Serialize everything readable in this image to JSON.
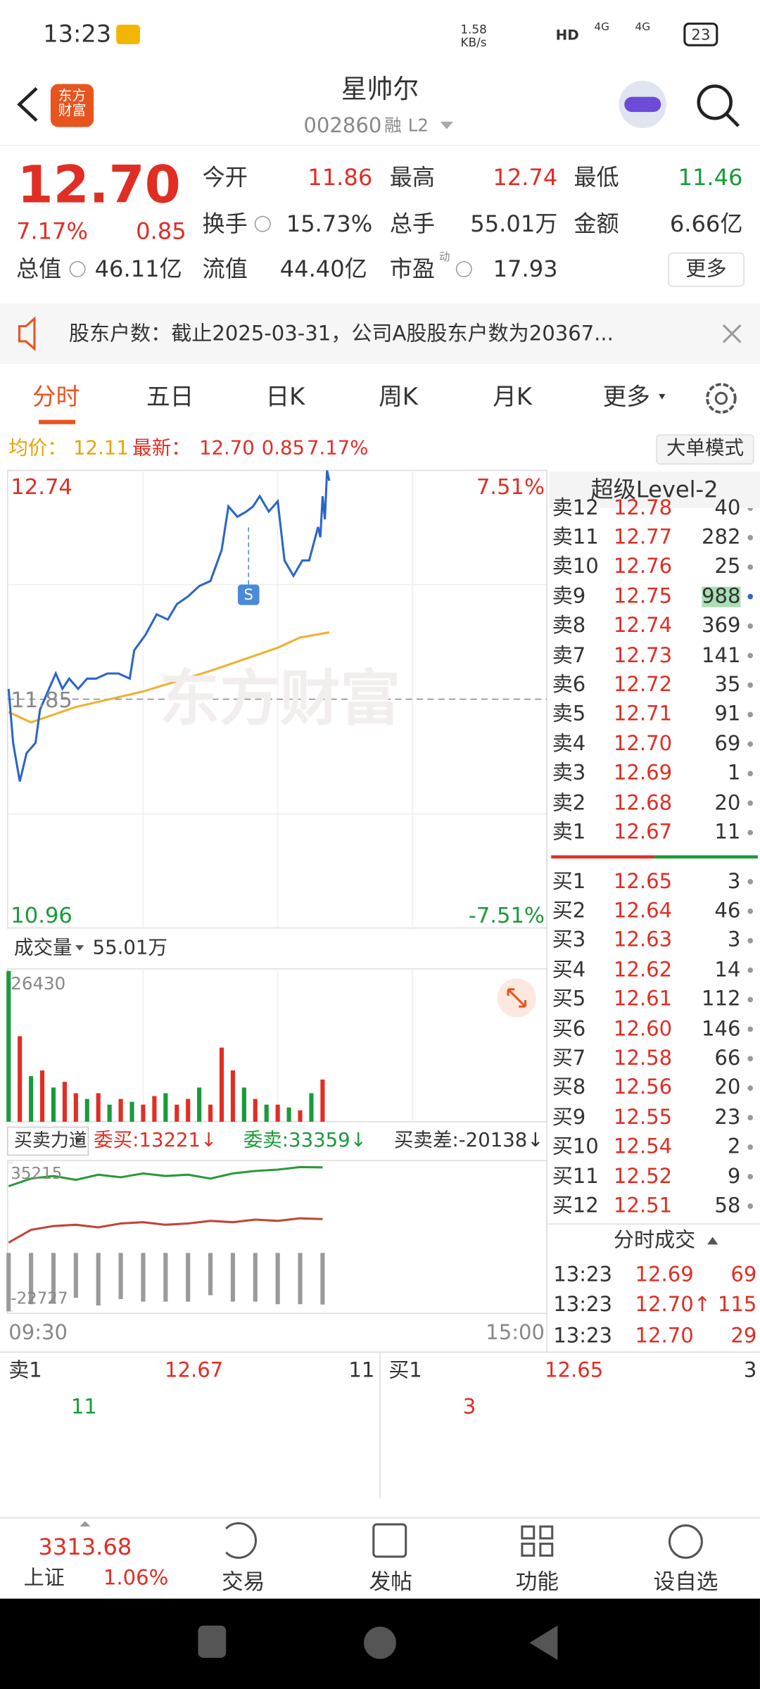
{
  "status_bar": {
    "time": "13:23",
    "speed": "1.58",
    "speed_unit": "KB/s",
    "hd": "HD",
    "net1": "4G",
    "net2": "4G",
    "battery": "23"
  },
  "header": {
    "title": "星帅尔",
    "code": "002860",
    "tag": "融",
    "level": "L2",
    "logo": "东方财富"
  },
  "quote": {
    "price": "12.70",
    "change_pct": "7.17%",
    "change": "0.85",
    "more": "更多",
    "pe_note": "动",
    "rows": [
      [
        {
          "label": "今开",
          "value": "11.86"
        },
        {
          "label": "最高",
          "value": "12.74"
        },
        {
          "label": "最低",
          "value": "11.46"
        }
      ],
      [
        {
          "label": "换手",
          "value": "15.73%"
        },
        {
          "label": "总手",
          "value": "55.01万"
        },
        {
          "label": "金额",
          "value": "6.66亿"
        }
      ],
      [
        {
          "label": "总值",
          "value": "46.11亿"
        },
        {
          "label": "流值",
          "value": "44.40亿"
        },
        {
          "label": "市盈",
          "value": "17.93"
        }
      ]
    ]
  },
  "notice": {
    "text": "股东户数：截止2025-03-31，公司A股股东户数为20367..."
  },
  "tabs": [
    "分时",
    "五日",
    "日K",
    "周K",
    "月K",
    "更多"
  ],
  "info": {
    "avg_label": "均价：",
    "avg": "12.11",
    "last_label": "最新：",
    "last": "12.70",
    "change": "0.85",
    "pct": "7.17%",
    "mode": "大单模式"
  },
  "chart_data": [
    {
      "type": "line",
      "x": [
        "09:30",
        "09:32",
        "09:35",
        "09:38",
        "09:42",
        "09:44",
        "09:48",
        "09:51",
        "09:54",
        "09:57",
        "10:01",
        "10:05",
        "10:09",
        "10:14",
        "10:19",
        "10:24",
        "10:26",
        "10:31",
        "10:36",
        "10:41",
        "10:45",
        "10:50",
        "10:55",
        "11:00",
        "11:05",
        "11:08",
        "11:12",
        "11:16",
        "11:19",
        "11:22",
        "11:26",
        "11:30",
        "13:03",
        "13:07",
        "13:11",
        "13:14",
        "13:18",
        "13:19",
        "13:20",
        "13:21",
        "13:22",
        "13:23"
      ],
      "series": [
        {
          "name": "最新",
          "color": "#2a66c8",
          "values": [
            11.89,
            11.68,
            11.53,
            11.64,
            11.68,
            11.81,
            11.89,
            11.95,
            11.89,
            11.93,
            11.89,
            11.93,
            11.93,
            11.95,
            11.95,
            11.93,
            12.04,
            12.1,
            12.18,
            12.16,
            12.22,
            12.25,
            12.29,
            12.31,
            12.43,
            12.6,
            12.56,
            12.58,
            12.6,
            12.64,
            12.58,
            12.62,
            12.39,
            12.33,
            12.39,
            12.39,
            12.52,
            12.48,
            12.64,
            12.55,
            12.74,
            12.7
          ]
        }
      ],
      "avg_x": [
        "09:30",
        "09:40",
        "10:00",
        "10:30",
        "11:00",
        "11:30",
        "13:10",
        "13:23"
      ],
      "avg_values": [
        11.8,
        11.76,
        11.82,
        11.88,
        11.96,
        12.05,
        12.09,
        12.11
      ],
      "avg_color": "#f0b030",
      "ylim": [
        10.96,
        12.74
      ],
      "yticks": [
        12.74,
        11.85,
        10.96
      ],
      "y2lim": [
        -7.51,
        7.51
      ],
      "y2ticks": [
        {
          "value": 7.51,
          "label": "7.51%"
        },
        {
          "value": -7.51,
          "label": "-7.51%"
        }
      ],
      "xticks": [
        "09:30",
        "15:00"
      ],
      "watermark": "东方财富",
      "annotation": {
        "x": "11:17",
        "text": "S"
      }
    },
    {
      "type": "bar",
      "label": "成交量",
      "total": "55.01万",
      "x": [
        "09:30",
        "09:35",
        "09:40",
        "09:45",
        "09:50",
        "09:55",
        "10:00",
        "10:05",
        "10:10",
        "10:15",
        "10:20",
        "10:25",
        "10:30",
        "10:35",
        "10:40",
        "10:45",
        "10:50",
        "10:55",
        "11:00",
        "11:05",
        "11:10",
        "11:15",
        "11:20",
        "11:25",
        "13:00",
        "13:05",
        "13:10",
        "13:15",
        "13:20"
      ],
      "values": [
        26430,
        15000,
        8000,
        9000,
        6000,
        7000,
        5000,
        4000,
        5000,
        3000,
        4000,
        3500,
        3000,
        4500,
        5000,
        3000,
        4000,
        6000,
        3000,
        13000,
        9000,
        6000,
        4000,
        3000,
        3000,
        2500,
        2000,
        5000,
        7400
      ],
      "colors": [
        "#1a9a3a",
        "#e02e24",
        "#1a9a3a",
        "#e02e24",
        "#1a9a3a",
        "#e02e24",
        "#e02e24",
        "#1a9a3a",
        "#e02e24",
        "#1a9a3a",
        "#e02e24",
        "#1a9a3a",
        "#e02e24",
        "#e02e24",
        "#1a9a3a",
        "#e02e24",
        "#e02e24",
        "#1a9a3a",
        "#e02e24",
        "#e02e24",
        "#e02e24",
        "#1a9a3a",
        "#e02e24",
        "#1a9a3a",
        "#e02e24",
        "#1a9a3a",
        "#e02e24",
        "#1a9a3a",
        "#e02e24"
      ],
      "ylim": [
        0,
        26430
      ],
      "yticks": [
        26430
      ]
    },
    {
      "type": "line",
      "label": "买卖力道",
      "buy": "委买:13221↓",
      "sell": "委卖:33359↓",
      "diff": "买卖差:-20138↓",
      "x": [
        "09:30",
        "09:40",
        "09:50",
        "10:00",
        "10:10",
        "10:20",
        "10:30",
        "10:40",
        "10:50",
        "11:00",
        "11:10",
        "11:20",
        "11:30",
        "13:10",
        "13:20"
      ],
      "series": [
        {
          "name": "委卖",
          "color": "#2a9a3a",
          "values": [
            26000,
            29000,
            30000,
            28500,
            30500,
            29500,
            31000,
            30000,
            30500,
            29000,
            31000,
            32000,
            32500,
            33500,
            33359
          ]
        },
        {
          "name": "委买",
          "color": "#c0453a",
          "values": [
            4000,
            9000,
            10500,
            11000,
            10000,
            11500,
            12000,
            11000,
            11500,
            12500,
            12000,
            13000,
            12500,
            13500,
            13221
          ]
        },
        {
          "name": "买卖差",
          "mark": "bar",
          "color": "#9a9a9a",
          "values": [
            -22727,
            -20000,
            -19500,
            -17500,
            -20500,
            -18000,
            -19000,
            -19000,
            -19000,
            -16500,
            -19000,
            -19000,
            -20000,
            -20000,
            -20138
          ]
        }
      ],
      "ylim": [
        -22727,
        35215
      ],
      "yticks": [
        35215,
        -22727
      ]
    }
  ],
  "order_book": {
    "title": "超级Level-2",
    "asks": [
      {
        "label": "卖12",
        "price": "12.78",
        "volume": "40"
      },
      {
        "label": "卖11",
        "price": "12.77",
        "volume": "282"
      },
      {
        "label": "卖10",
        "price": "12.76",
        "volume": "25"
      },
      {
        "label": "卖9",
        "price": "12.75",
        "volume": "988"
      },
      {
        "label": "卖8",
        "price": "12.74",
        "volume": "369"
      },
      {
        "label": "卖7",
        "price": "12.73",
        "volume": "141"
      },
      {
        "label": "卖6",
        "price": "12.72",
        "volume": "35"
      },
      {
        "label": "卖5",
        "price": "12.71",
        "volume": "91"
      },
      {
        "label": "卖4",
        "price": "12.70",
        "volume": "69"
      },
      {
        "label": "卖3",
        "price": "12.69",
        "volume": "1"
      },
      {
        "label": "卖2",
        "price": "12.68",
        "volume": "20"
      },
      {
        "label": "卖1",
        "price": "12.67",
        "volume": "11"
      }
    ],
    "bids": [
      {
        "label": "买1",
        "price": "12.65",
        "volume": "3"
      },
      {
        "label": "买2",
        "price": "12.64",
        "volume": "46"
      },
      {
        "label": "买3",
        "price": "12.63",
        "volume": "3"
      },
      {
        "label": "买4",
        "price": "12.62",
        "volume": "14"
      },
      {
        "label": "买5",
        "price": "12.61",
        "volume": "112"
      },
      {
        "label": "买6",
        "price": "12.60",
        "volume": "146"
      },
      {
        "label": "买7",
        "price": "12.58",
        "volume": "66"
      },
      {
        "label": "买8",
        "price": "12.56",
        "volume": "20"
      },
      {
        "label": "买9",
        "price": "12.55",
        "volume": "23"
      },
      {
        "label": "买10",
        "price": "12.54",
        "volume": "2"
      },
      {
        "label": "买11",
        "price": "12.52",
        "volume": "9"
      },
      {
        "label": "买12",
        "price": "12.51",
        "volume": "58"
      }
    ]
  },
  "trades": {
    "title": "分时成交",
    "rows": [
      [
        "13:23",
        "12.69",
        "69"
      ],
      [
        "13:23",
        "12.70↑",
        "115"
      ],
      [
        "13:23",
        "12.70",
        "29"
      ]
    ]
  },
  "best": {
    "ask_label": "卖1",
    "ask_price": "12.67",
    "ask_volume": "11",
    "ask_detail": "11",
    "bid_label": "买1",
    "bid_price": "12.65",
    "bid_volume": "3",
    "bid_detail": "3"
  },
  "bottom_nav": {
    "index_value": "3313.68",
    "index_name": "上证",
    "index_pct": "1.06%",
    "items": [
      "交易",
      "发帖",
      "功能",
      "设自选"
    ]
  }
}
